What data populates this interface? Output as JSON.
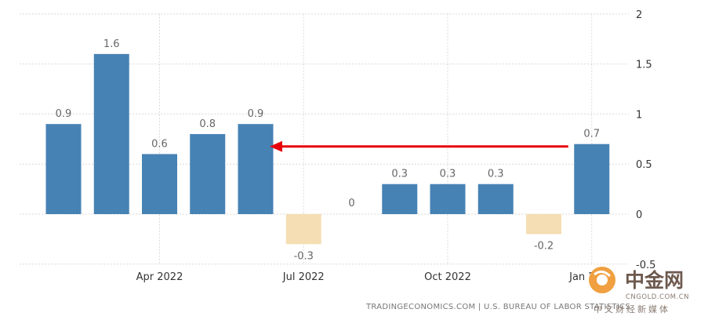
{
  "chart_data": {
    "type": "bar",
    "categories": [
      "Feb 2022",
      "Mar 2022",
      "Apr 2022",
      "May 2022",
      "Jun 2022",
      "Jul 2022",
      "Aug 2022",
      "Sep 2022",
      "Oct 2022",
      "Nov 2022",
      "Dec 2022",
      "Jan 2023"
    ],
    "values": [
      0.9,
      1.6,
      0.6,
      0.8,
      0.9,
      -0.3,
      0,
      0.3,
      0.3,
      0.3,
      -0.2,
      0.7
    ],
    "data_labels": [
      "0.9",
      "1.6",
      "0.6",
      "0.8",
      "0.9",
      "-0.3",
      "0",
      "0.3",
      "0.3",
      "0.3",
      "-0.2",
      "0.7"
    ],
    "ylim": [
      -0.5,
      2
    ],
    "y_ticks": [
      {
        "value": 2,
        "label": "2"
      },
      {
        "value": 1.5,
        "label": "1.5"
      },
      {
        "value": 1,
        "label": "1"
      },
      {
        "value": 0.5,
        "label": "0.5"
      },
      {
        "value": 0,
        "label": "0"
      },
      {
        "value": -0.5,
        "label": "-0.5"
      }
    ],
    "x_ticks": [
      {
        "category": "Apr 2022",
        "label": "Apr 2022"
      },
      {
        "category": "Jul 2022",
        "label": "Jul 2022"
      },
      {
        "category": "Oct 2022",
        "label": "Oct 2022"
      },
      {
        "category": "Jan 2023",
        "label": "Jan 2023"
      }
    ],
    "y_axis_position": "right",
    "grid": true,
    "colors": {
      "positive": "#4682b4",
      "negative": "#f5deb3",
      "grid": "#d9d9d9",
      "arrow": "#e8000b"
    },
    "annotations": [
      {
        "type": "arrow",
        "from_category": "Jan 2023",
        "to_category": "Jun 2022",
        "at_value": 0.68
      }
    ]
  },
  "source": "TRADINGECONOMICS.COM  |  U.S. BUREAU OF LABOR STATISTICS",
  "watermark": {
    "name": "中金网",
    "domain": "CNGOLD.COM.CN",
    "tagline": "中文财经新媒体"
  }
}
